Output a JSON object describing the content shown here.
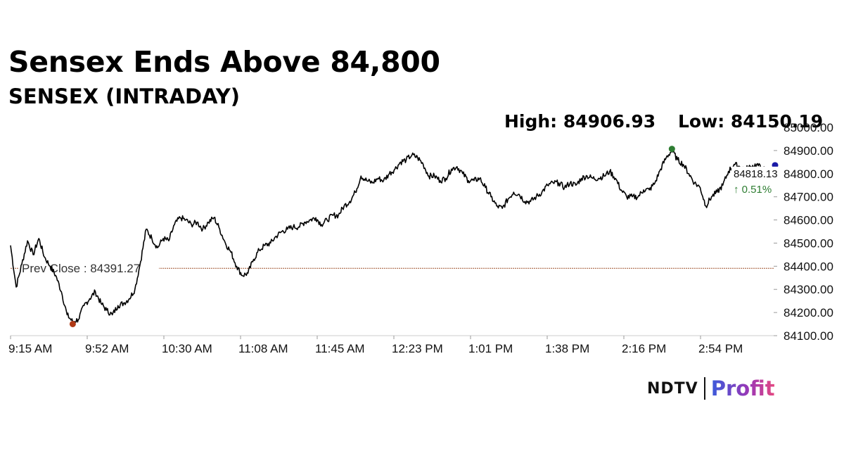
{
  "headline": "Sensex Ends Above 84,800",
  "subtitle": "SENSEX (INTRADAY)",
  "stats": {
    "high_label": "High: 84906.93",
    "low_label": "Low: 84150.19"
  },
  "prev_close_label": "Prev Close : 84391.27",
  "last_price_label": "84818.13",
  "change_label": "↑ 0.51%",
  "logo": {
    "ndtv": "NDTV",
    "profit": "Profit"
  },
  "colors": {
    "line": "#000000",
    "prev_close": "#a0522d",
    "high_dot": "#2e7d32",
    "low_dot": "#b03a16",
    "last_dot": "#1a1aa6",
    "change_up": "#2e7d32"
  },
  "chart_data": {
    "type": "line",
    "title": "SENSEX (INTRADAY)",
    "xlabel": "",
    "ylabel": "",
    "ylim": [
      84100,
      85000
    ],
    "x_tick_labels": [
      "9:15 AM",
      "9:52 AM",
      "10:30 AM",
      "11:08 AM",
      "11:45 AM",
      "12:23 PM",
      "1:01 PM",
      "1:38 PM",
      "2:16 PM",
      "2:54 PM"
    ],
    "y_tick_labels": [
      "84100.00",
      "84200.00",
      "84300.00",
      "84400.00",
      "84500.00",
      "84600.00",
      "84700.00",
      "84800.00",
      "84900.00",
      "85000.00"
    ],
    "y_ticks": [
      84100,
      84200,
      84300,
      84400,
      84500,
      84600,
      84700,
      84800,
      84900,
      85000
    ],
    "prev_close": 84391.27,
    "high": 84906.93,
    "low": 84150.19,
    "last": 84818.13,
    "change_percent": 0.51,
    "series": [
      {
        "values": [
          84490,
          84310,
          84410,
          84510,
          84450,
          84520,
          84440,
          84400,
          84360,
          84290,
          84190,
          84160,
          84170,
          84230,
          84260,
          84290,
          84240,
          84210,
          84190,
          84230,
          84240,
          84260,
          84300,
          84420,
          84560,
          84520,
          84480,
          84520,
          84510,
          84580,
          84610,
          84600,
          84580,
          84590,
          84560,
          84590,
          84610,
          84560,
          84500,
          84460,
          84400,
          84360,
          84370,
          84430,
          84470,
          84490,
          84500,
          84530,
          84550,
          84560,
          84570,
          84570,
          84590,
          84600,
          84610,
          84580,
          84600,
          84620,
          84620,
          84660,
          84680,
          84720,
          84790,
          84770,
          84760,
          84780,
          84770,
          84800,
          84820,
          84850,
          84860,
          84880,
          84870,
          84840,
          84790,
          84790,
          84770,
          84780,
          84820,
          84830,
          84800,
          84770,
          84770,
          84780,
          84740,
          84700,
          84660,
          84650,
          84690,
          84720,
          84710,
          84680,
          84680,
          84700,
          84720,
          84750,
          84760,
          84760,
          84740,
          84760,
          84750,
          84780,
          84790,
          84780,
          84780,
          84790,
          84810,
          84780,
          84730,
          84700,
          84700,
          84700,
          84730,
          84730,
          84760,
          84820,
          84870,
          84900,
          84860,
          84840,
          84800,
          84760,
          84740,
          84660,
          84700,
          84720,
          84750,
          84810,
          84840,
          84830,
          84820,
          84830,
          84840,
          84820,
          84815,
          84818
        ]
      }
    ]
  }
}
